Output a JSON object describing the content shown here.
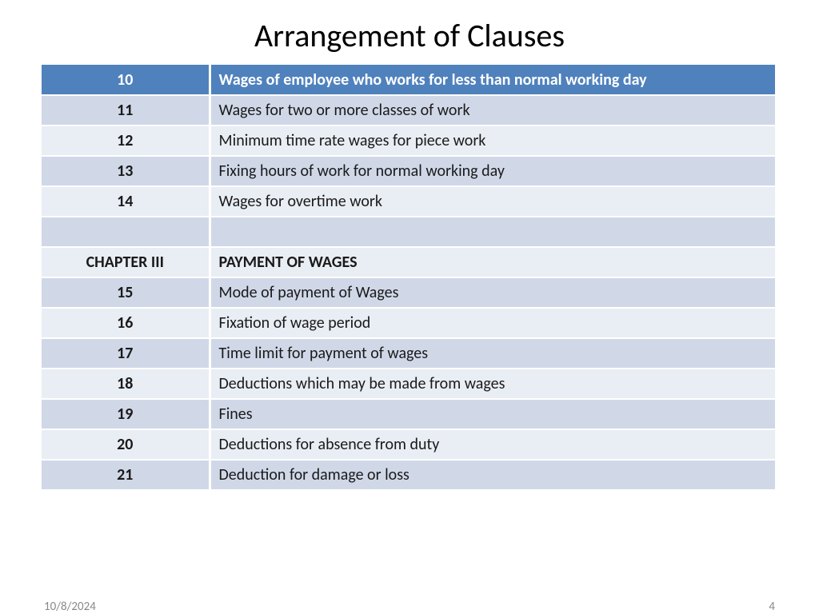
{
  "title": "Arrangement of Clauses",
  "colors": {
    "header_bg": "#4f81bd",
    "header_text": "#ffffff",
    "row_odd_bg": "#d0d8e8",
    "row_even_bg": "#e9edf4",
    "text": "#1a1a1a",
    "footer_text": "#898989",
    "background": "#ffffff"
  },
  "typography": {
    "title_fontsize": 40,
    "cell_fontsize": 20,
    "footer_fontsize": 15,
    "font_family": "Calibri"
  },
  "table": {
    "type": "table",
    "col_left_width": 210,
    "total_width": 920,
    "rows": [
      {
        "left": "10",
        "right": "Wages of employee who works for less than normal working day",
        "style": "header"
      },
      {
        "left": "11",
        "right": "Wages for two or more classes of work",
        "style": "odd"
      },
      {
        "left": "12",
        "right": "Minimum time rate wages for piece work",
        "style": "even"
      },
      {
        "left": "13",
        "right": "Fixing hours of work for normal working day",
        "style": "odd"
      },
      {
        "left": "14",
        "right": "Wages for overtime work",
        "style": "even"
      },
      {
        "left": "",
        "right": "",
        "style": "odd"
      },
      {
        "left": "CHAPTER III",
        "right": "PAYMENT OF WAGES",
        "style": "even",
        "chapter": true
      },
      {
        "left": "15",
        "right": "Mode of payment of Wages",
        "style": "odd"
      },
      {
        "left": "16",
        "right": "Fixation of wage period",
        "style": "even"
      },
      {
        "left": "17",
        "right": "Time limit for payment of wages",
        "style": "odd"
      },
      {
        "left": "18",
        "right": "Deductions which may be made from wages",
        "style": "even"
      },
      {
        "left": "19",
        "right": "Fines",
        "style": "odd"
      },
      {
        "left": "20",
        "right": "Deductions for absence from duty",
        "style": "even"
      },
      {
        "left": "21",
        "right": "Deduction for damage or loss",
        "style": "odd"
      }
    ]
  },
  "footer": {
    "date": "10/8/2024",
    "page": "4"
  }
}
